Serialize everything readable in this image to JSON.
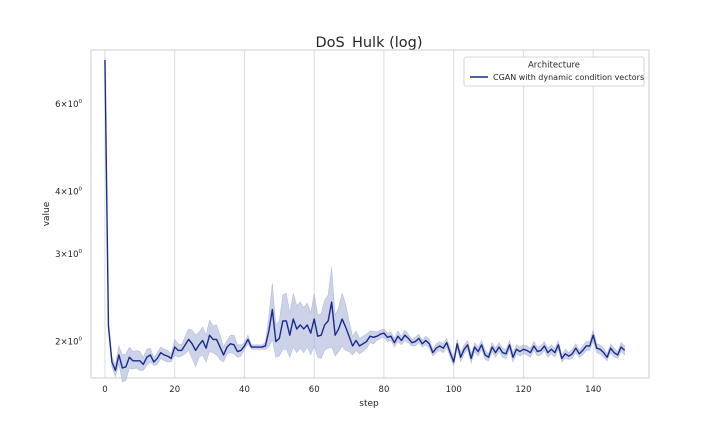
{
  "chart_data": {
    "type": "line",
    "title": "DoS_Hulk (log)",
    "xlabel": "step",
    "ylabel": "value",
    "xlim": [
      -4,
      156
    ],
    "ylim": [
      1.69,
      7.7
    ],
    "yscale": "log",
    "x_ticks": [
      0,
      20,
      40,
      60,
      80,
      100,
      120,
      140
    ],
    "x_tick_labels": [
      "0",
      "20",
      "40",
      "60",
      "80",
      "100",
      "120",
      "140"
    ],
    "y_ticks": [
      {
        "value": 2,
        "base": "2",
        "exp": "0"
      },
      {
        "value": 3,
        "base": "3",
        "exp": "0"
      },
      {
        "value": 4,
        "base": "4",
        "exp": "0"
      },
      {
        "value": 6,
        "base": "6",
        "exp": "0"
      }
    ],
    "grid": {
      "x": true,
      "y": false
    },
    "legend": {
      "title": "Architecture",
      "position": "top-right"
    },
    "series": [
      {
        "name": "CGAN with dynamic condition vectors",
        "color": "#1a2a8c",
        "band_color": "#9aa6d0",
        "x": [
          0,
          1,
          2,
          3,
          4,
          5,
          6,
          7,
          8,
          9,
          10,
          11,
          12,
          13,
          14,
          15,
          16,
          17,
          18,
          19,
          20,
          21,
          22,
          23,
          24,
          25,
          26,
          27,
          28,
          29,
          30,
          31,
          32,
          33,
          34,
          35,
          36,
          37,
          38,
          39,
          40,
          41,
          42,
          43,
          44,
          45,
          46,
          47,
          48,
          49,
          50,
          51,
          52,
          53,
          54,
          55,
          56,
          57,
          58,
          59,
          60,
          61,
          62,
          63,
          64,
          65,
          66,
          67,
          68,
          69,
          70,
          71,
          72,
          73,
          74,
          75,
          76,
          77,
          78,
          79,
          80,
          81,
          82,
          83,
          84,
          85,
          86,
          87,
          88,
          89,
          90,
          91,
          92,
          93,
          94,
          95,
          96,
          97,
          98,
          99,
          100,
          101,
          102,
          103,
          104,
          105,
          106,
          107,
          108,
          109,
          110,
          111,
          112,
          113,
          114,
          115,
          116,
          117,
          118,
          119,
          120,
          121,
          122,
          123,
          124,
          125,
          126,
          127,
          128,
          129,
          130,
          131,
          132,
          133,
          134,
          135,
          136,
          137,
          138,
          139,
          140,
          141,
          142,
          143,
          144,
          145,
          146,
          147,
          148,
          149
        ],
        "y": [
          7.35,
          2.15,
          1.82,
          1.75,
          1.88,
          1.77,
          1.78,
          1.86,
          1.83,
          1.83,
          1.83,
          1.8,
          1.86,
          1.88,
          1.82,
          1.85,
          1.9,
          1.88,
          1.87,
          1.85,
          1.95,
          1.92,
          1.92,
          1.97,
          2.02,
          1.98,
          1.92,
          1.97,
          2.01,
          1.94,
          2.06,
          2.02,
          2.02,
          1.95,
          1.88,
          1.95,
          1.98,
          1.97,
          1.91,
          1.92,
          1.96,
          2.02,
          1.95,
          1.95,
          1.95,
          1.95,
          1.96,
          2.1,
          2.32,
          2.0,
          2.03,
          2.2,
          2.2,
          2.06,
          2.22,
          2.12,
          2.16,
          2.12,
          2.16,
          2.08,
          2.22,
          2.05,
          2.06,
          2.16,
          2.2,
          2.4,
          2.06,
          2.12,
          2.22,
          2.14,
          2.05,
          1.96,
          2.01,
          1.96,
          1.98,
          2.0,
          2.05,
          2.04,
          2.05,
          2.07,
          2.08,
          2.04,
          2.05,
          1.99,
          2.05,
          2.01,
          2.06,
          2.03,
          1.99,
          2.0,
          2.03,
          1.98,
          2.01,
          1.98,
          1.9,
          1.94,
          1.96,
          1.94,
          1.99,
          1.9,
          1.82,
          1.98,
          1.86,
          1.93,
          1.97,
          1.85,
          1.95,
          1.91,
          1.97,
          1.88,
          1.86,
          1.95,
          1.9,
          1.95,
          1.9,
          1.89,
          1.97,
          1.86,
          1.93,
          1.91,
          1.93,
          1.92,
          1.9,
          1.96,
          1.91,
          1.92,
          1.96,
          1.9,
          1.93,
          1.9,
          1.97,
          1.85,
          1.89,
          1.87,
          1.89,
          1.94,
          1.89,
          1.92,
          1.96,
          1.96,
          2.06,
          1.94,
          1.93,
          1.9,
          1.86,
          1.94,
          1.9,
          1.88,
          1.95,
          1.92
        ],
        "y_low": [
          7.25,
          2.1,
          1.78,
          1.7,
          1.8,
          1.66,
          1.67,
          1.77,
          1.76,
          1.77,
          1.75,
          1.75,
          1.79,
          1.82,
          1.79,
          1.8,
          1.85,
          1.83,
          1.82,
          1.82,
          1.88,
          1.86,
          1.87,
          1.89,
          1.92,
          1.85,
          1.78,
          1.86,
          1.88,
          1.82,
          1.91,
          1.9,
          1.88,
          1.84,
          1.82,
          1.89,
          1.9,
          1.89,
          1.86,
          1.87,
          1.93,
          1.98,
          1.93,
          1.93,
          1.93,
          1.93,
          1.93,
          1.95,
          2.02,
          1.86,
          1.87,
          1.93,
          1.93,
          1.86,
          1.95,
          1.9,
          1.94,
          1.9,
          1.95,
          1.88,
          1.96,
          1.86,
          1.85,
          1.92,
          1.94,
          1.95,
          1.87,
          1.91,
          1.96,
          1.92,
          1.91,
          1.88,
          1.92,
          1.89,
          1.91,
          1.94,
          1.99,
          1.98,
          2.01,
          2.03,
          2.04,
          2.0,
          2.01,
          1.95,
          2.0,
          1.97,
          2.01,
          1.99,
          1.96,
          1.96,
          1.99,
          1.95,
          1.97,
          1.94,
          1.87,
          1.9,
          1.92,
          1.9,
          1.95,
          1.86,
          1.79,
          1.94,
          1.82,
          1.89,
          1.93,
          1.81,
          1.91,
          1.87,
          1.93,
          1.84,
          1.83,
          1.91,
          1.86,
          1.91,
          1.86,
          1.85,
          1.93,
          1.82,
          1.89,
          1.87,
          1.89,
          1.88,
          1.86,
          1.92,
          1.87,
          1.88,
          1.92,
          1.86,
          1.89,
          1.86,
          1.93,
          1.82,
          1.85,
          1.84,
          1.85,
          1.9,
          1.86,
          1.88,
          1.92,
          1.92,
          2.01,
          1.9,
          1.89,
          1.86,
          1.83,
          1.9,
          1.86,
          1.85,
          1.91,
          1.88
        ],
        "y_high": [
          7.45,
          2.2,
          1.86,
          1.8,
          1.96,
          1.88,
          1.89,
          1.95,
          1.91,
          1.92,
          1.91,
          1.86,
          1.93,
          1.94,
          1.86,
          1.9,
          1.95,
          1.93,
          1.92,
          1.89,
          2.02,
          1.98,
          1.97,
          2.05,
          2.12,
          2.11,
          2.06,
          2.09,
          2.14,
          2.06,
          2.21,
          2.15,
          2.16,
          2.06,
          1.95,
          2.01,
          2.06,
          2.06,
          1.97,
          1.97,
          1.99,
          2.06,
          1.97,
          1.97,
          1.97,
          1.97,
          1.99,
          2.25,
          2.62,
          2.16,
          2.2,
          2.48,
          2.5,
          2.28,
          2.5,
          2.36,
          2.4,
          2.34,
          2.39,
          2.28,
          2.5,
          2.26,
          2.28,
          2.42,
          2.48,
          2.82,
          2.26,
          2.34,
          2.5,
          2.38,
          2.2,
          2.05,
          2.1,
          2.03,
          2.05,
          2.07,
          2.1,
          2.1,
          2.09,
          2.11,
          2.12,
          2.08,
          2.09,
          2.03,
          2.1,
          2.05,
          2.11,
          2.07,
          2.02,
          2.04,
          2.07,
          2.01,
          2.05,
          2.02,
          1.93,
          1.98,
          2.0,
          1.98,
          2.03,
          1.94,
          1.85,
          2.02,
          1.9,
          1.97,
          2.01,
          1.89,
          1.99,
          1.95,
          2.01,
          1.92,
          1.89,
          1.99,
          1.94,
          1.99,
          1.94,
          1.93,
          2.01,
          1.9,
          1.97,
          1.95,
          1.97,
          1.96,
          1.94,
          2.0,
          1.95,
          1.96,
          2.0,
          1.94,
          1.97,
          1.94,
          2.01,
          1.88,
          1.93,
          1.9,
          1.93,
          1.98,
          1.92,
          1.96,
          2.0,
          2.0,
          2.11,
          1.98,
          1.97,
          1.94,
          1.89,
          1.98,
          1.94,
          1.91,
          1.99,
          1.96
        ]
      }
    ]
  }
}
